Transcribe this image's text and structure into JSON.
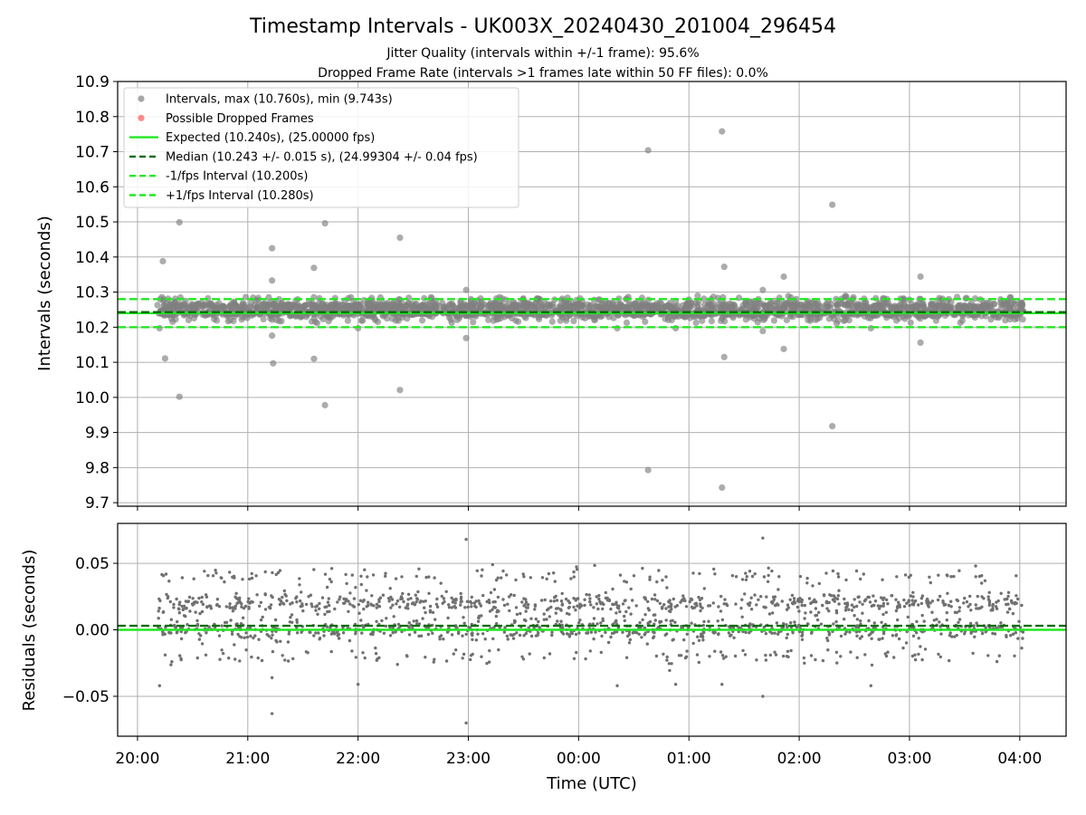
{
  "chart_data": [
    {
      "type": "scatter",
      "title": "Timestamp Intervals - UK003X_20240430_201004_296454",
      "subtitle_lines": [
        "Jitter Quality (intervals within +/-1 frame): 95.6%",
        "Dropped Frame Rate (intervals >1 frames late within 50 FF files): 0.0%"
      ],
      "ylabel": "Intervals (seconds)",
      "ylim": [
        9.69,
        10.9
      ],
      "xlim_hours": [
        19.82,
        28.42
      ],
      "yticks": [
        9.7,
        9.8,
        9.9,
        10.0,
        10.1,
        10.2,
        10.3,
        10.4,
        10.5,
        10.6,
        10.7,
        10.8,
        10.9
      ],
      "yticklabels": [
        "9.7",
        "9.8",
        "9.9",
        "10.0",
        "10.1",
        "10.2",
        "10.3",
        "10.4",
        "10.5",
        "10.6",
        "10.7",
        "10.8",
        "10.9"
      ],
      "grid": true,
      "legend_position": "upper-left",
      "legend": [
        {
          "label": "Intervals, max (10.760s), min (9.743s)",
          "marker": "circle",
          "color": "#808080"
        },
        {
          "label": "Possible Dropped Frames",
          "marker": "circle",
          "color": "#ff5a5a"
        },
        {
          "label": "Expected (10.240s), (25.00000 fps)",
          "marker": "line",
          "color": "#22e822",
          "dash": false
        },
        {
          "label": "Median (10.243 +/- 0.015 s), (24.99304 +/- 0.04 fps)",
          "marker": "line",
          "color": "#0a6b0a",
          "dash": true
        },
        {
          "label": "-1/fps Interval (10.200s)",
          "marker": "line",
          "color": "#22e822",
          "dash": true
        },
        {
          "label": "+1/fps Interval (10.280s)",
          "marker": "line",
          "color": "#22e822",
          "dash": true
        }
      ],
      "reference_lines": [
        {
          "name": "expected",
          "y": 10.24,
          "color": "#22e822",
          "dash": false
        },
        {
          "name": "median",
          "y": 10.243,
          "color": "#0a6b0a",
          "dash": true
        },
        {
          "name": "minus_one_frame",
          "y": 10.2,
          "color": "#22e822",
          "dash": true
        },
        {
          "name": "plus_one_frame",
          "y": 10.28,
          "color": "#22e822",
          "dash": true
        }
      ],
      "dense_band": {
        "x_start_hours": 20.18,
        "x_end_hours": 28.03,
        "y_min": 10.205,
        "y_max": 10.285,
        "color": "#808080"
      },
      "outliers": [
        {
          "x": 20.2,
          "y": 10.197
        },
        {
          "x": 20.23,
          "y": 10.388
        },
        {
          "x": 20.25,
          "y": 10.111
        },
        {
          "x": 20.38,
          "y": 10.499
        },
        {
          "x": 20.38,
          "y": 10.002
        },
        {
          "x": 21.22,
          "y": 10.425
        },
        {
          "x": 21.22,
          "y": 10.333
        },
        {
          "x": 21.22,
          "y": 10.176
        },
        {
          "x": 21.23,
          "y": 10.097
        },
        {
          "x": 21.6,
          "y": 10.369
        },
        {
          "x": 21.6,
          "y": 10.11
        },
        {
          "x": 21.7,
          "y": 10.496
        },
        {
          "x": 21.7,
          "y": 9.978
        },
        {
          "x": 22.0,
          "y": 10.197
        },
        {
          "x": 22.38,
          "y": 10.455
        },
        {
          "x": 22.38,
          "y": 10.021
        },
        {
          "x": 22.98,
          "y": 10.306
        },
        {
          "x": 22.98,
          "y": 10.169
        },
        {
          "x": 24.35,
          "y": 10.197
        },
        {
          "x": 24.63,
          "y": 10.704
        },
        {
          "x": 24.63,
          "y": 9.793
        },
        {
          "x": 24.88,
          "y": 10.197
        },
        {
          "x": 25.3,
          "y": 10.758
        },
        {
          "x": 25.32,
          "y": 10.372
        },
        {
          "x": 25.32,
          "y": 10.115
        },
        {
          "x": 25.3,
          "y": 9.743
        },
        {
          "x": 25.67,
          "y": 10.306
        },
        {
          "x": 25.67,
          "y": 10.189
        },
        {
          "x": 25.86,
          "y": 10.344
        },
        {
          "x": 25.86,
          "y": 10.138
        },
        {
          "x": 26.3,
          "y": 10.549
        },
        {
          "x": 26.3,
          "y": 9.918
        },
        {
          "x": 26.65,
          "y": 10.197
        },
        {
          "x": 27.1,
          "y": 10.344
        },
        {
          "x": 27.1,
          "y": 10.156
        }
      ]
    },
    {
      "type": "scatter",
      "ylabel": "Residuals (seconds)",
      "xlabel": "Time (UTC)",
      "ylim": [
        -0.08,
        0.08
      ],
      "xlim_hours": [
        19.82,
        28.42
      ],
      "yticks": [
        -0.05,
        0.0,
        0.05
      ],
      "yticklabels": [
        "−0.05",
        "0.00",
        "0.05"
      ],
      "xticks_hours": [
        20,
        21,
        22,
        23,
        24,
        25,
        26,
        27,
        28
      ],
      "xticklabels": [
        "20:00",
        "21:00",
        "22:00",
        "23:00",
        "00:00",
        "01:00",
        "02:00",
        "03:00",
        "04:00"
      ],
      "grid": true,
      "reference_lines": [
        {
          "name": "expected",
          "y": 0.0,
          "color": "#22e822",
          "dash": false
        },
        {
          "name": "median",
          "y": 0.003,
          "color": "#0a6b0a",
          "dash": true
        }
      ],
      "clusters": [
        {
          "y": 0.0,
          "spread": 0.004,
          "weight": 0.42
        },
        {
          "y": 0.02,
          "spread": 0.004,
          "weight": 0.42
        },
        {
          "y": 0.04,
          "spread": 0.003,
          "weight": 0.08
        },
        {
          "y": -0.02,
          "spread": 0.003,
          "weight": 0.08
        }
      ],
      "x_range_hours": [
        20.18,
        28.03
      ],
      "point_color": "#707070",
      "outliers": [
        {
          "x": 20.2,
          "y": -0.042
        },
        {
          "x": 21.22,
          "y": -0.036
        },
        {
          "x": 21.22,
          "y": -0.063
        },
        {
          "x": 22.0,
          "y": -0.041
        },
        {
          "x": 22.98,
          "y": 0.068
        },
        {
          "x": 22.98,
          "y": -0.07
        },
        {
          "x": 23.22,
          "y": 0.049
        },
        {
          "x": 24.35,
          "y": -0.042
        },
        {
          "x": 24.88,
          "y": -0.041
        },
        {
          "x": 25.3,
          "y": -0.041
        },
        {
          "x": 25.67,
          "y": 0.069
        },
        {
          "x": 25.67,
          "y": -0.05
        },
        {
          "x": 26.65,
          "y": -0.042
        },
        {
          "x": 27.6,
          "y": 0.048
        }
      ]
    }
  ]
}
